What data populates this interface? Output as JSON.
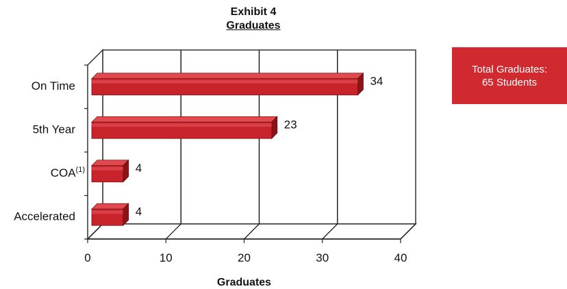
{
  "chart_data": {
    "type": "bar",
    "orientation": "horizontal",
    "title": "Exhibit 4",
    "subtitle": "Graduates",
    "categories": [
      "On Time",
      "5th Year",
      "COA",
      "Accelerated"
    ],
    "category_superscripts": [
      "",
      "",
      "(1)",
      ""
    ],
    "values": [
      34,
      23,
      4,
      4
    ],
    "xlabel": "Graduates",
    "ylabel": "",
    "xlim": [
      0,
      40
    ],
    "xticks": [
      0,
      10,
      20,
      30,
      40
    ],
    "grid": true,
    "style": "3d",
    "bar_color": "#c8232b"
  },
  "callout": {
    "line1": "Total Graduates:",
    "line2": "65 Students"
  }
}
